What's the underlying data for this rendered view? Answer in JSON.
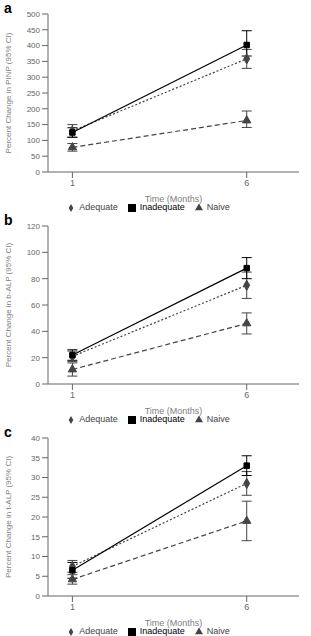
{
  "chart_data": [
    {
      "type": "line",
      "title": "a",
      "xlabel": "Time (Months)",
      "ylabel": "Percent Change in PINP (95% CI)",
      "x": [
        1,
        6
      ],
      "xlim": [
        0.3,
        7.5
      ],
      "xticks": [
        1,
        6
      ],
      "ylim": [
        0,
        500
      ],
      "yticks": [
        0,
        50,
        100,
        150,
        200,
        250,
        300,
        350,
        400,
        450,
        500
      ],
      "legend": "bottom",
      "series": [
        {
          "name": "Adequate",
          "color": "#444444",
          "marker": "diamond",
          "line_style": "dotted",
          "values": [
            130,
            358
          ],
          "error_low": [
            20,
            30
          ],
          "error_high": [
            20,
            30
          ]
        },
        {
          "name": "Inadequate",
          "color": "#000000",
          "marker": "square",
          "line_style": "solid",
          "values": [
            125,
            402
          ],
          "error_low": [
            15,
            35
          ],
          "error_high": [
            15,
            45
          ]
        },
        {
          "name": "Naive",
          "color": "#444444",
          "marker": "triangle",
          "line_style": "dashed",
          "values": [
            78,
            163
          ],
          "error_low": [
            12,
            22
          ],
          "error_high": [
            12,
            30
          ]
        }
      ]
    },
    {
      "type": "line",
      "title": "b",
      "xlabel": "Time (Months)",
      "ylabel": "Percent Change in b-ALP (95% CI)",
      "x": [
        1,
        6
      ],
      "xlim": [
        0.3,
        7.5
      ],
      "xticks": [
        1,
        6
      ],
      "ylim": [
        0,
        120
      ],
      "yticks": [
        0,
        20,
        40,
        60,
        80,
        100,
        120
      ],
      "legend": "bottom",
      "series": [
        {
          "name": "Adequate",
          "color": "#444444",
          "marker": "diamond",
          "line_style": "dotted",
          "values": [
            21,
            75
          ],
          "error_low": [
            4,
            10
          ],
          "error_high": [
            4,
            10
          ]
        },
        {
          "name": "Inadequate",
          "color": "#000000",
          "marker": "square",
          "line_style": "solid",
          "values": [
            22,
            88
          ],
          "error_low": [
            4,
            8
          ],
          "error_high": [
            4,
            8
          ]
        },
        {
          "name": "Naive",
          "color": "#444444",
          "marker": "triangle",
          "line_style": "dashed",
          "values": [
            11,
            46
          ],
          "error_low": [
            5,
            8
          ],
          "error_high": [
            5,
            8
          ]
        }
      ]
    },
    {
      "type": "line",
      "title": "c",
      "xlabel": "Time (Months)",
      "ylabel": "Percent Change in t-ALP (95% CI)",
      "x": [
        1,
        6
      ],
      "xlim": [
        0.3,
        7.5
      ],
      "xticks": [
        1,
        6
      ],
      "ylim": [
        0,
        40
      ],
      "yticks": [
        0,
        5,
        10,
        15,
        20,
        25,
        30,
        35,
        40
      ],
      "legend": "bottom",
      "series": [
        {
          "name": "Adequate",
          "color": "#444444",
          "marker": "diamond",
          "line_style": "dotted",
          "values": [
            7.5,
            28.5
          ],
          "error_low": [
            1.5,
            3
          ],
          "error_high": [
            1.5,
            3
          ]
        },
        {
          "name": "Inadequate",
          "color": "#000000",
          "marker": "square",
          "line_style": "solid",
          "values": [
            6.5,
            33
          ],
          "error_low": [
            2,
            2.5
          ],
          "error_high": [
            2,
            2.5
          ]
        },
        {
          "name": "Naive",
          "color": "#444444",
          "marker": "triangle",
          "line_style": "dashed",
          "values": [
            4.2,
            19
          ],
          "error_low": [
            1.2,
            5
          ],
          "error_high": [
            1.2,
            5
          ]
        }
      ]
    }
  ]
}
